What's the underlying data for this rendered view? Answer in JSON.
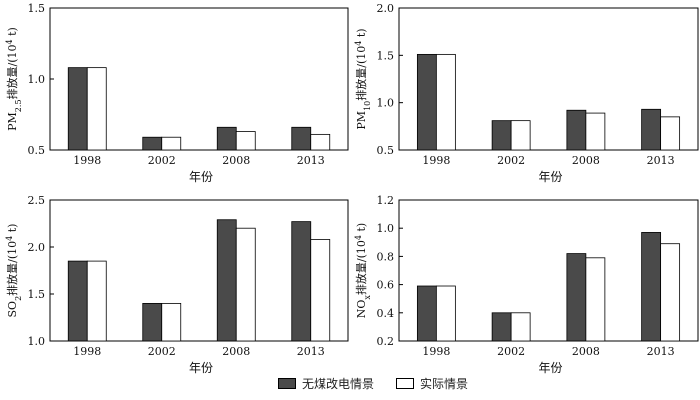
{
  "colors": {
    "series1": "#4a4a4a",
    "series2": "#ffffff",
    "stroke": "#000000"
  },
  "legend": {
    "s1": "无煤改电情景",
    "s2": "实际情景"
  },
  "chart_data": [
    {
      "type": "bar",
      "categories": [
        "1998",
        "2002",
        "2008",
        "2013"
      ],
      "series": [
        {
          "name": "无煤改电情景",
          "values": [
            1.08,
            0.59,
            0.66,
            0.66
          ]
        },
        {
          "name": "实际情景",
          "values": [
            1.08,
            0.59,
            0.63,
            0.61
          ]
        }
      ],
      "ylabel_html": "PM<tspan baseline-shift='sub' font-size='8'>2.5</tspan>排放量/(10<tspan baseline-shift='super' font-size='8'>4</tspan> t)",
      "xlabel": "年份",
      "ylim": [
        0.5,
        1.5
      ],
      "yticks": [
        0.5,
        1.0,
        1.5
      ]
    },
    {
      "type": "bar",
      "categories": [
        "1998",
        "2002",
        "2008",
        "2013"
      ],
      "series": [
        {
          "name": "无煤改电情景",
          "values": [
            1.51,
            0.81,
            0.92,
            0.93
          ]
        },
        {
          "name": "实际情景",
          "values": [
            1.51,
            0.81,
            0.89,
            0.85
          ]
        }
      ],
      "ylabel_html": "PM<tspan baseline-shift='sub' font-size='8'>10</tspan>排放量/(10<tspan baseline-shift='super' font-size='8'>4</tspan> t)",
      "xlabel": "年份",
      "ylim": [
        0.5,
        2.0
      ],
      "yticks": [
        0.5,
        1.0,
        1.5,
        2.0
      ]
    },
    {
      "type": "bar",
      "categories": [
        "1998",
        "2002",
        "2008",
        "2013"
      ],
      "series": [
        {
          "name": "无煤改电情景",
          "values": [
            1.85,
            1.4,
            2.29,
            2.27
          ]
        },
        {
          "name": "实际情景",
          "values": [
            1.85,
            1.4,
            2.2,
            2.08
          ]
        }
      ],
      "ylabel_html": "SO<tspan baseline-shift='sub' font-size='8'>2</tspan>排放量/(10<tspan baseline-shift='super' font-size='8'>4</tspan> t)",
      "xlabel": "年份",
      "ylim": [
        1.0,
        2.5
      ],
      "yticks": [
        1.0,
        1.5,
        2.0,
        2.5
      ]
    },
    {
      "type": "bar",
      "categories": [
        "1998",
        "2002",
        "2008",
        "2013"
      ],
      "series": [
        {
          "name": "无煤改电情景",
          "values": [
            0.59,
            0.4,
            0.82,
            0.97
          ]
        },
        {
          "name": "实际情景",
          "values": [
            0.59,
            0.4,
            0.79,
            0.89
          ]
        }
      ],
      "ylabel_html": "NO<tspan baseline-shift='sub' font-size='8'>x</tspan>排放量/(10<tspan baseline-shift='super' font-size='8'>4</tspan> t)",
      "xlabel": "年份",
      "ylim": [
        0.2,
        1.2
      ],
      "yticks": [
        0.2,
        0.4,
        0.6,
        0.8,
        1.0,
        1.2
      ]
    }
  ]
}
